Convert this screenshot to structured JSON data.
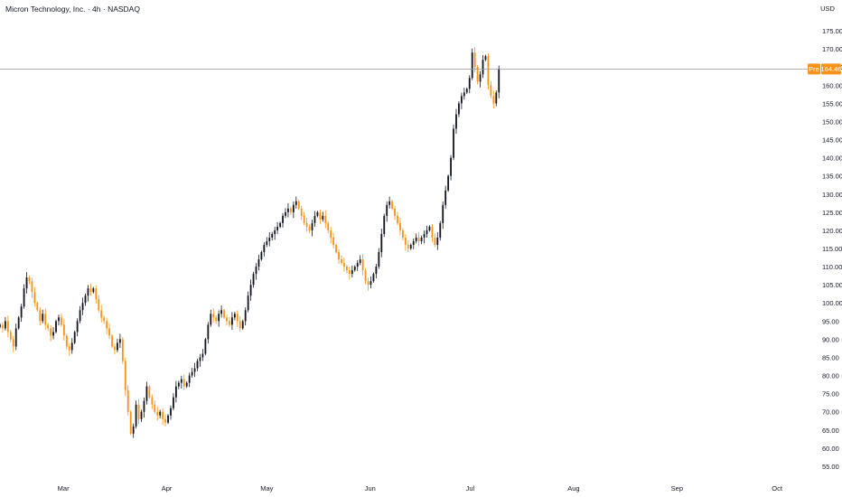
{
  "header": {
    "title": "Micron Technology, Inc. · 4h · NASDAQ",
    "currency": "USD"
  },
  "colors": {
    "up": "#131722",
    "down": "#f7931a",
    "price_line": "#9598a1",
    "price_tag": "#f7931a",
    "pre_tag": "#f7931a"
  },
  "chart_data": {
    "type": "candlestick",
    "title": "Micron Technology, Inc. · 4h · NASDAQ",
    "ylim": [
      52,
      178
    ],
    "y_ticks": [
      "55.00",
      "60.00",
      "65.00",
      "70.00",
      "75.00",
      "80.00",
      "85.00",
      "90.00",
      "95.00",
      "100.00",
      "105.00",
      "110.00",
      "115.00",
      "120.00",
      "125.00",
      "130.00",
      "135.00",
      "140.00",
      "145.00",
      "150.00",
      "155.00",
      "160.00",
      "165.00",
      "170.00",
      "175.00"
    ],
    "x_ticks": [
      {
        "label": "Mar",
        "date": "2025-03-01"
      },
      {
        "label": "Apr",
        "date": "2025-04-01"
      },
      {
        "label": "May",
        "date": "2025-05-01"
      },
      {
        "label": "Jun",
        "date": "2025-06-01"
      },
      {
        "label": "Jul",
        "date": "2025-07-01"
      },
      {
        "label": "Aug",
        "date": "2025-08-01"
      },
      {
        "label": "Sep",
        "date": "2025-09-01"
      },
      {
        "label": "Oct",
        "date": "2025-10-01"
      }
    ],
    "current_price": 164.46,
    "price_tag_label": "Pre",
    "price_tag_value": "164.46",
    "x_start": "2025-02-10",
    "x_end": "2025-10-11",
    "candle_interval_days": 0.8,
    "closes": [
      94,
      93,
      95,
      92,
      90,
      88,
      93,
      96,
      99,
      104,
      107,
      106,
      103,
      100,
      98,
      95,
      97,
      94,
      93,
      91,
      92,
      95,
      96,
      94,
      91,
      88,
      87,
      89,
      92,
      95,
      98,
      100,
      102,
      104,
      103,
      104,
      101,
      98,
      96,
      95,
      93,
      91,
      88,
      87,
      89,
      90,
      84,
      76,
      70,
      64,
      66,
      72,
      68,
      70,
      73,
      77,
      74,
      72,
      70,
      69,
      70,
      68,
      67,
      69,
      71,
      74,
      77,
      78,
      79,
      77,
      78,
      80,
      81,
      82,
      84,
      85,
      86,
      90,
      94,
      97,
      96,
      95,
      97,
      98,
      96,
      95,
      94,
      96,
      97,
      95,
      93,
      95,
      98,
      102,
      105,
      108,
      110,
      112,
      114,
      116,
      117,
      118,
      119,
      120,
      121,
      122,
      124,
      125,
      126,
      125,
      127,
      128,
      126,
      124,
      122,
      121,
      120,
      122,
      124,
      125,
      123,
      124,
      122,
      120,
      118,
      116,
      114,
      112,
      111,
      110,
      109,
      108,
      109,
      110,
      111,
      112,
      109,
      106,
      105,
      106,
      108,
      110,
      114,
      119,
      124,
      127,
      128,
      126,
      124,
      122,
      120,
      118,
      116,
      115,
      116,
      117,
      118,
      117,
      118,
      119,
      120,
      121,
      118,
      116,
      118,
      122,
      127,
      131,
      135,
      140,
      148,
      152,
      155,
      157,
      158,
      159,
      162,
      169,
      165,
      161,
      163,
      167,
      168,
      160,
      157,
      155,
      158,
      164.46
    ]
  }
}
